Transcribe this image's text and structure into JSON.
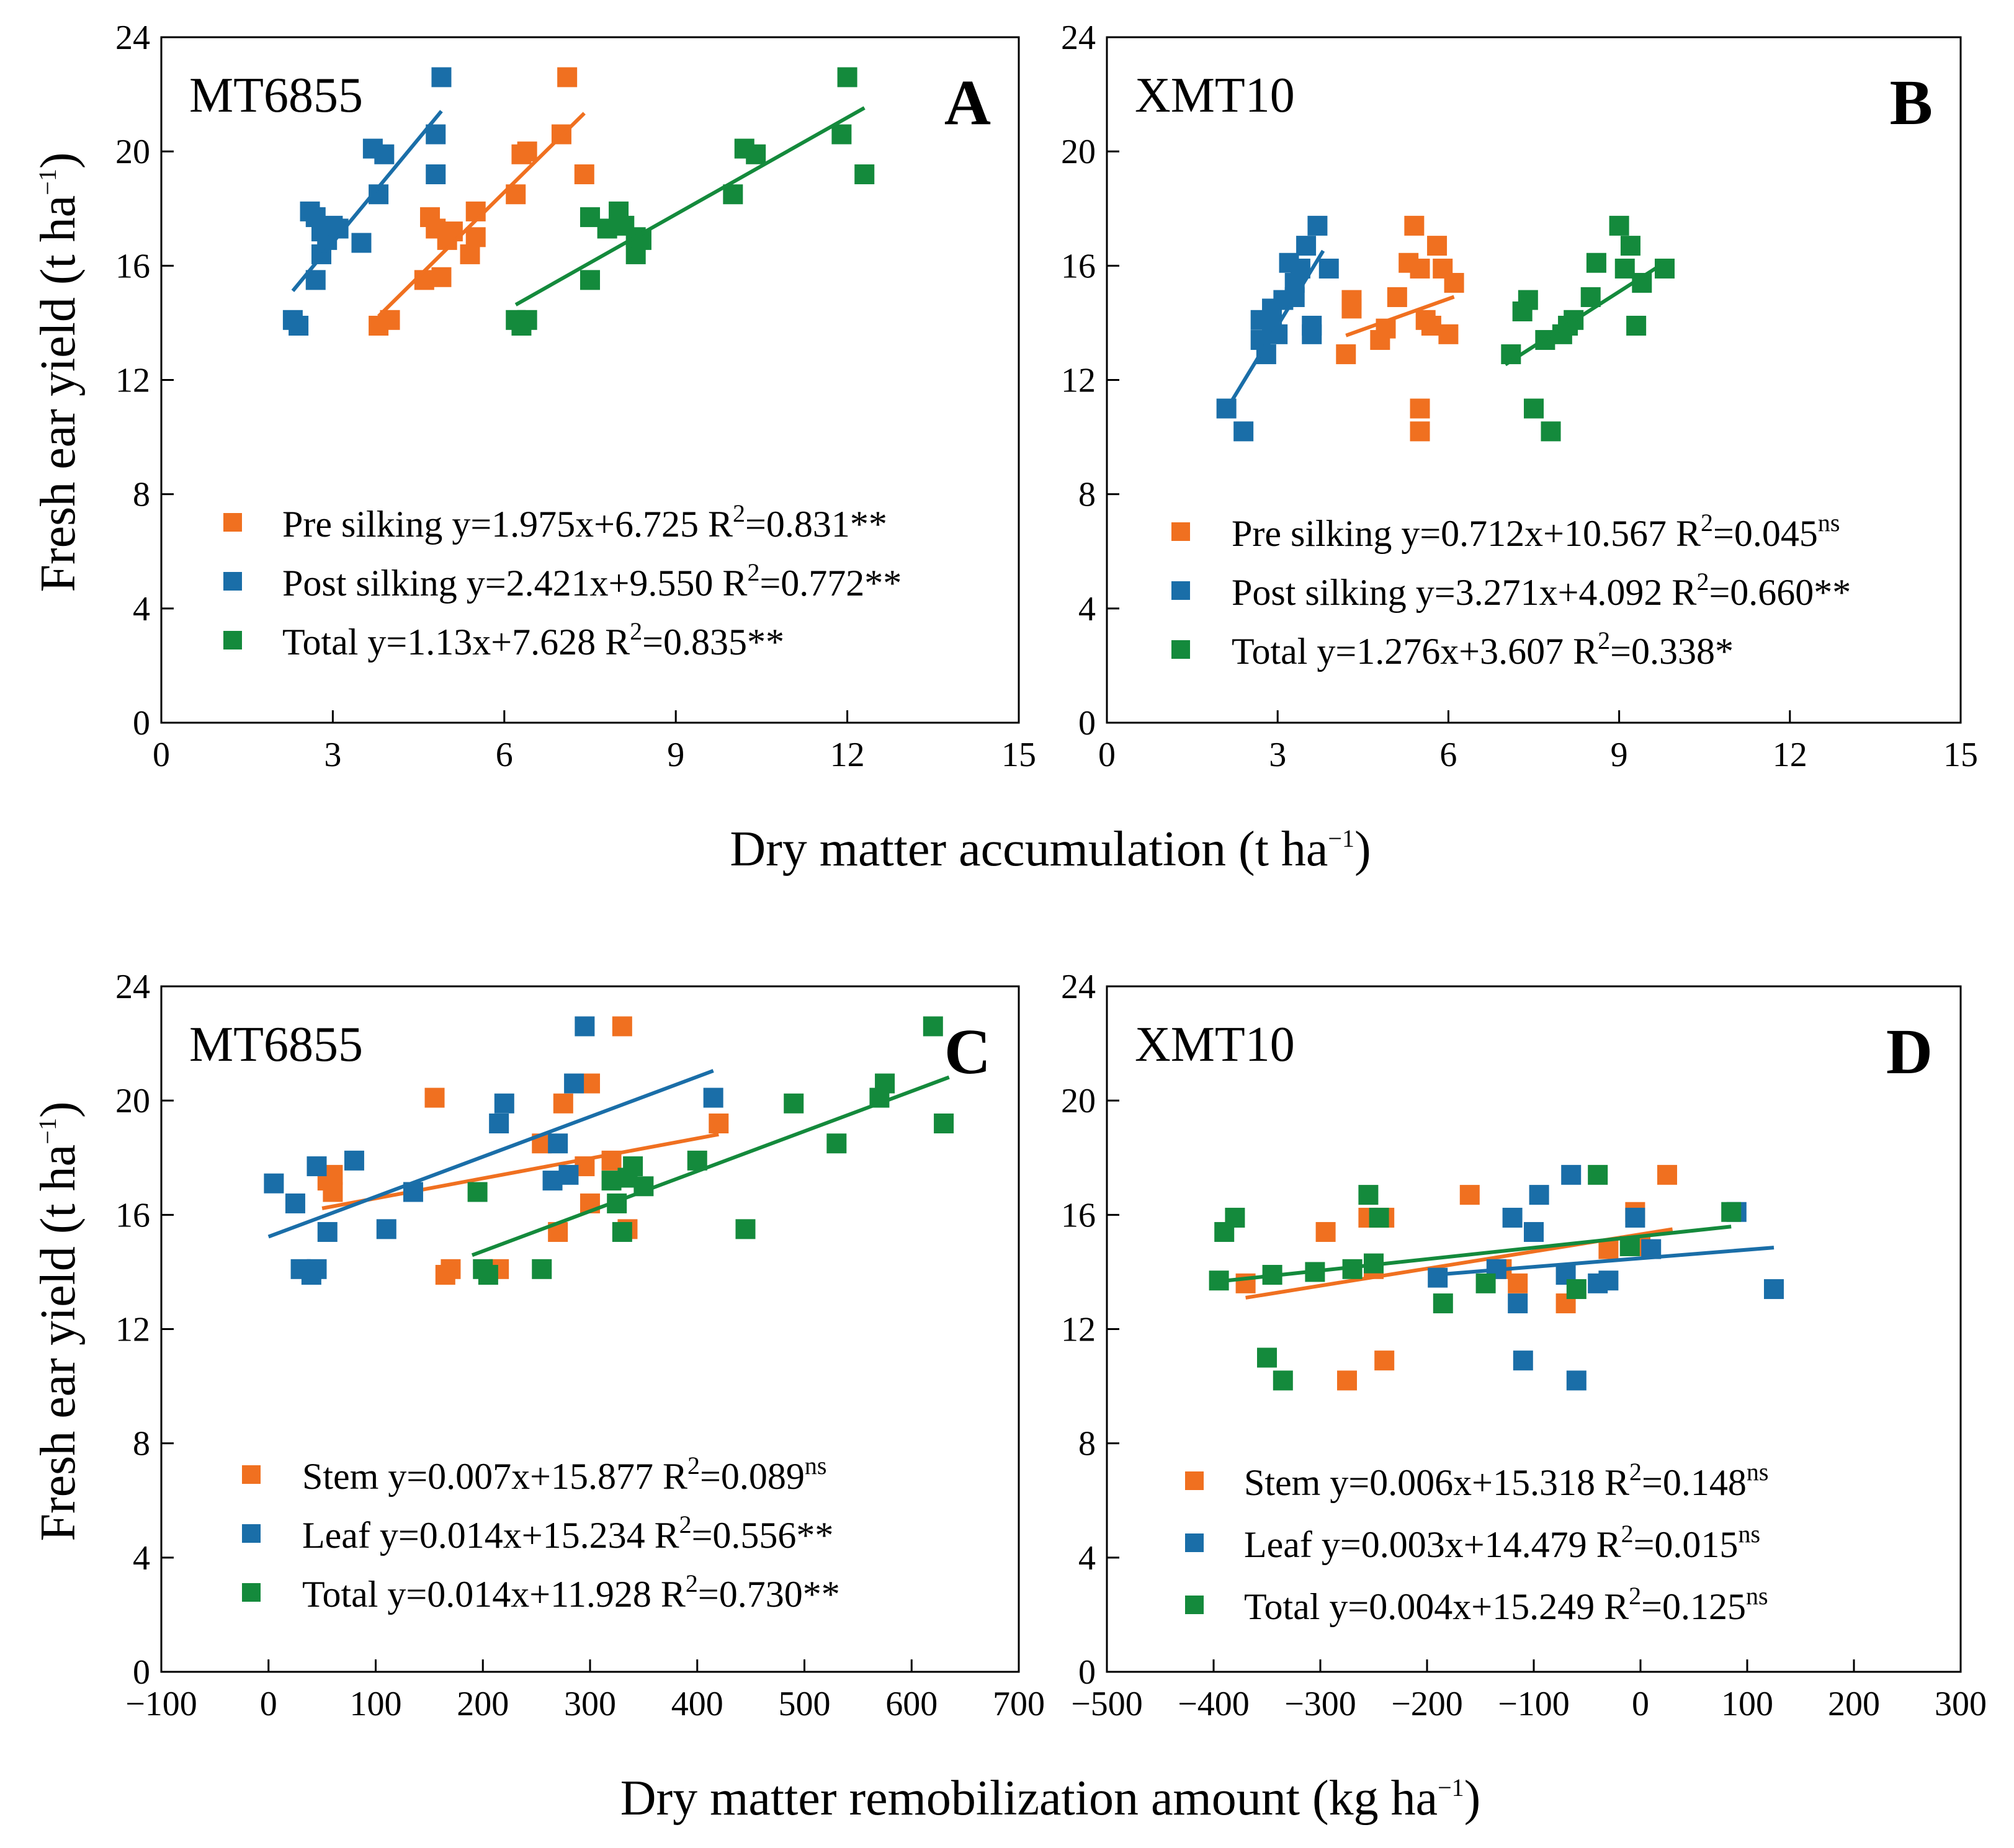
{
  "figure": {
    "ylabel": "Fresh ear yield (t ha",
    "ylabel_sup": "−1",
    "ylabel_close": ")",
    "xlabel_top": "Dry matter accumulation (t ha",
    "xlabel_top_sup": "−1",
    "xlabel_top_close": ")",
    "xlabel_bottom": "Dry matter remobilization amount (kg ha",
    "xlabel_bottom_sup": "−1",
    "xlabel_bottom_close": ")"
  },
  "colors": {
    "orange": "#f07020",
    "blue": "#1a6ea8",
    "green": "#148a3c"
  },
  "chart_data": [
    {
      "panel": "A",
      "cultivar": "MT6855",
      "type": "scatter",
      "xlim": [
        0,
        15
      ],
      "ylim": [
        0,
        24
      ],
      "xticks": [
        0,
        3,
        6,
        9,
        12,
        15
      ],
      "yticks": [
        0,
        4,
        8,
        12,
        16,
        20,
        24
      ],
      "series": [
        {
          "name": "Pre silking",
          "equation": "y=1.975x+6.725",
          "r2_label": "R",
          "r2_value": "=0.831**",
          "color": "orange",
          "x": [
            3.8,
            4.0,
            4.6,
            4.7,
            4.8,
            4.9,
            5.0,
            5.1,
            5.4,
            5.5,
            5.5,
            6.2,
            6.3,
            6.4,
            7.0,
            7.1,
            7.4
          ],
          "y": [
            13.9,
            14.1,
            15.5,
            17.7,
            17.3,
            15.6,
            16.9,
            17.2,
            16.4,
            17.0,
            17.9,
            18.5,
            19.9,
            20.0,
            20.6,
            22.6,
            19.2
          ],
          "fit": [
            3.8,
            7.4
          ]
        },
        {
          "name": "Post silking",
          "equation": "y=2.421x+9.550",
          "r2_label": "R",
          "r2_value": "=0.772**",
          "color": "blue",
          "x": [
            2.3,
            2.4,
            2.6,
            2.7,
            2.7,
            2.8,
            2.8,
            2.9,
            3.0,
            3.1,
            3.5,
            3.7,
            3.8,
            3.9,
            4.8,
            4.8,
            4.9
          ],
          "y": [
            14.1,
            13.9,
            17.9,
            15.5,
            17.7,
            16.4,
            17.2,
            16.9,
            17.4,
            17.3,
            16.8,
            20.1,
            18.5,
            19.9,
            20.6,
            19.2,
            22.6
          ],
          "fit": [
            2.3,
            4.9
          ]
        },
        {
          "name": "Total",
          "equation": "y=1.13x+7.628",
          "r2_label": "R",
          "r2_value": "=0.835**",
          "color": "green",
          "x": [
            6.2,
            6.3,
            6.4,
            7.5,
            7.5,
            7.8,
            8.0,
            8.1,
            8.3,
            8.3,
            8.4,
            10.0,
            10.2,
            10.4,
            11.9,
            12.0,
            12.3
          ],
          "y": [
            14.1,
            13.9,
            14.1,
            17.7,
            15.5,
            17.3,
            17.9,
            17.4,
            16.4,
            17.0,
            16.9,
            18.5,
            20.1,
            19.9,
            20.6,
            22.6,
            19.2
          ],
          "fit": [
            6.2,
            12.3
          ]
        }
      ]
    },
    {
      "panel": "B",
      "cultivar": "XMT10",
      "type": "scatter",
      "xlim": [
        0,
        15
      ],
      "ylim": [
        0,
        24
      ],
      "xticks": [
        0,
        3,
        6,
        9,
        12,
        15
      ],
      "yticks": [
        0,
        4,
        8,
        12,
        16,
        20,
        24
      ],
      "series": [
        {
          "name": "Pre silking",
          "equation": "y=0.712x+10.567",
          "r2_label": "R",
          "r2_value": "=0.045",
          "r2_sup": "ns",
          "color": "orange",
          "x": [
            4.2,
            4.3,
            4.3,
            4.8,
            4.9,
            5.1,
            5.3,
            5.4,
            5.5,
            5.5,
            5.6,
            5.7,
            5.8,
            5.9,
            6.0,
            6.1,
            5.5
          ],
          "y": [
            12.9,
            14.5,
            14.8,
            13.4,
            13.8,
            14.9,
            16.1,
            17.4,
            11.0,
            10.2,
            14.1,
            13.9,
            16.7,
            15.9,
            13.6,
            15.4,
            15.9
          ],
          "fit": [
            4.2,
            6.1
          ]
        },
        {
          "name": "Post silking",
          "equation": "y=3.271x+4.092",
          "r2_label": "R",
          "r2_value": "=0.660**",
          "color": "blue",
          "x": [
            2.1,
            2.4,
            2.7,
            2.7,
            2.8,
            2.9,
            2.9,
            3.0,
            3.1,
            3.2,
            3.3,
            3.3,
            3.4,
            3.5,
            3.6,
            3.6,
            3.7,
            3.9
          ],
          "y": [
            11.0,
            10.2,
            14.1,
            13.4,
            12.9,
            14.5,
            13.9,
            13.6,
            14.8,
            16.1,
            15.4,
            14.9,
            15.9,
            16.7,
            13.6,
            13.9,
            17.4,
            15.9
          ],
          "fit": [
            2.1,
            3.8
          ]
        },
        {
          "name": "Total",
          "equation": "y=1.276x+3.607",
          "r2_label": "R",
          "r2_value": "=0.338*",
          "color": "green",
          "x": [
            7.1,
            7.3,
            7.4,
            7.5,
            7.7,
            7.8,
            8.0,
            8.1,
            8.2,
            8.5,
            8.6,
            9.0,
            9.1,
            9.2,
            9.3,
            9.4,
            9.8
          ],
          "y": [
            12.9,
            14.4,
            14.8,
            11.0,
            13.4,
            10.2,
            13.6,
            13.9,
            14.1,
            14.9,
            16.1,
            17.4,
            15.9,
            16.7,
            13.9,
            15.4,
            15.9
          ],
          "fit": [
            7.0,
            9.8
          ]
        }
      ]
    },
    {
      "panel": "C",
      "cultivar": "MT6855",
      "type": "scatter",
      "xlim": [
        -100,
        700
      ],
      "ylim": [
        0,
        24
      ],
      "xticks": [
        -100,
        0,
        100,
        200,
        300,
        400,
        500,
        600,
        700
      ],
      "yticks": [
        0,
        4,
        8,
        12,
        16,
        20,
        24
      ],
      "series": [
        {
          "name": "Stem",
          "equation": "y=0.007x+15.877",
          "r2_label": "R",
          "r2_value": "=0.089",
          "r2_sup": "ns",
          "color": "orange",
          "x": [
            55,
            60,
            155,
            165,
            170,
            215,
            255,
            270,
            275,
            295,
            300,
            320,
            330,
            335,
            420,
            300,
            60
          ],
          "y": [
            17.2,
            16.8,
            20.1,
            13.9,
            14.1,
            14.1,
            18.5,
            15.4,
            19.9,
            17.7,
            16.4,
            17.9,
            22.6,
            15.5,
            19.2,
            20.6,
            17.4
          ],
          "fit": [
            50,
            420
          ]
        },
        {
          "name": "Leaf",
          "equation": "y=0.014x+15.234",
          "r2_label": "R",
          "r2_value": "=0.556**",
          "color": "blue",
          "x": [
            5,
            25,
            30,
            40,
            45,
            45,
            55,
            80,
            110,
            135,
            215,
            220,
            265,
            270,
            280,
            285,
            295,
            415
          ],
          "y": [
            17.1,
            16.4,
            14.1,
            13.9,
            14.1,
            17.7,
            15.4,
            17.9,
            15.5,
            16.8,
            19.2,
            19.9,
            17.2,
            18.5,
            17.4,
            20.6,
            22.6,
            20.1
          ],
          "fit": [
            0,
            415
          ]
        },
        {
          "name": "Total",
          "equation": "y=0.014x+11.928",
          "r2_label": "R",
          "r2_value": "=0.730**",
          "color": "green",
          "x": [
            195,
            200,
            205,
            255,
            320,
            325,
            330,
            335,
            340,
            350,
            400,
            445,
            490,
            530,
            570,
            575,
            620,
            630
          ],
          "y": [
            16.8,
            14.1,
            13.9,
            14.1,
            17.2,
            16.4,
            15.4,
            17.3,
            17.7,
            17.0,
            17.9,
            15.5,
            19.9,
            18.5,
            20.1,
            20.6,
            22.6,
            19.2
          ],
          "fit": [
            190,
            635
          ]
        }
      ]
    },
    {
      "panel": "D",
      "cultivar": "XMT10",
      "type": "scatter",
      "xlim": [
        -500,
        300
      ],
      "ylim": [
        0,
        24
      ],
      "xticks": [
        -500,
        -400,
        -300,
        -200,
        -100,
        0,
        100,
        200,
        300
      ],
      "yticks": [
        0,
        4,
        8,
        12,
        16,
        20,
        24
      ],
      "series": [
        {
          "name": "Stem",
          "equation": "y=0.006x+15.318",
          "r2_label": "R",
          "r2_value": "=0.148",
          "r2_sup": "ns",
          "color": "orange",
          "x": [
            -370,
            -295,
            -275,
            -255,
            -250,
            -240,
            -240,
            -160,
            -130,
            -115,
            -70,
            -30,
            -5,
            0,
            25
          ],
          "y": [
            13.6,
            15.4,
            10.2,
            15.9,
            14.1,
            15.9,
            10.9,
            16.7,
            14.1,
            13.6,
            12.9,
            14.8,
            16.1,
            14.9,
            17.4
          ],
          "fit": [
            -370,
            30
          ]
        },
        {
          "name": "Leaf",
          "equation": "y=0.003x+14.479",
          "r2_label": "R",
          "r2_value": "=0.015",
          "r2_sup": "ns",
          "color": "blue",
          "x": [
            -190,
            -135,
            -120,
            -115,
            -110,
            -100,
            -95,
            -70,
            -65,
            -60,
            -40,
            -30,
            -5,
            10,
            90,
            125
          ],
          "y": [
            13.8,
            14.1,
            15.9,
            12.9,
            10.9,
            15.4,
            16.7,
            13.9,
            17.4,
            10.2,
            13.6,
            13.7,
            15.9,
            14.8,
            16.1,
            13.4
          ],
          "fit": [
            -190,
            125
          ]
        },
        {
          "name": "Total",
          "equation": "y=0.004x+15.249",
          "r2_label": "R",
          "r2_value": "=0.125",
          "r2_sup": "ns",
          "color": "green",
          "x": [
            -395,
            -390,
            -380,
            -350,
            -345,
            -335,
            -305,
            -270,
            -255,
            -250,
            -245,
            -185,
            -145,
            -60,
            -40,
            -10,
            85
          ],
          "y": [
            13.7,
            15.4,
            15.9,
            11.0,
            13.9,
            10.2,
            14.0,
            14.1,
            16.7,
            14.3,
            15.9,
            12.9,
            13.6,
            13.4,
            17.4,
            14.9,
            16.1
          ],
          "fit": [
            -395,
            85
          ]
        }
      ]
    }
  ]
}
